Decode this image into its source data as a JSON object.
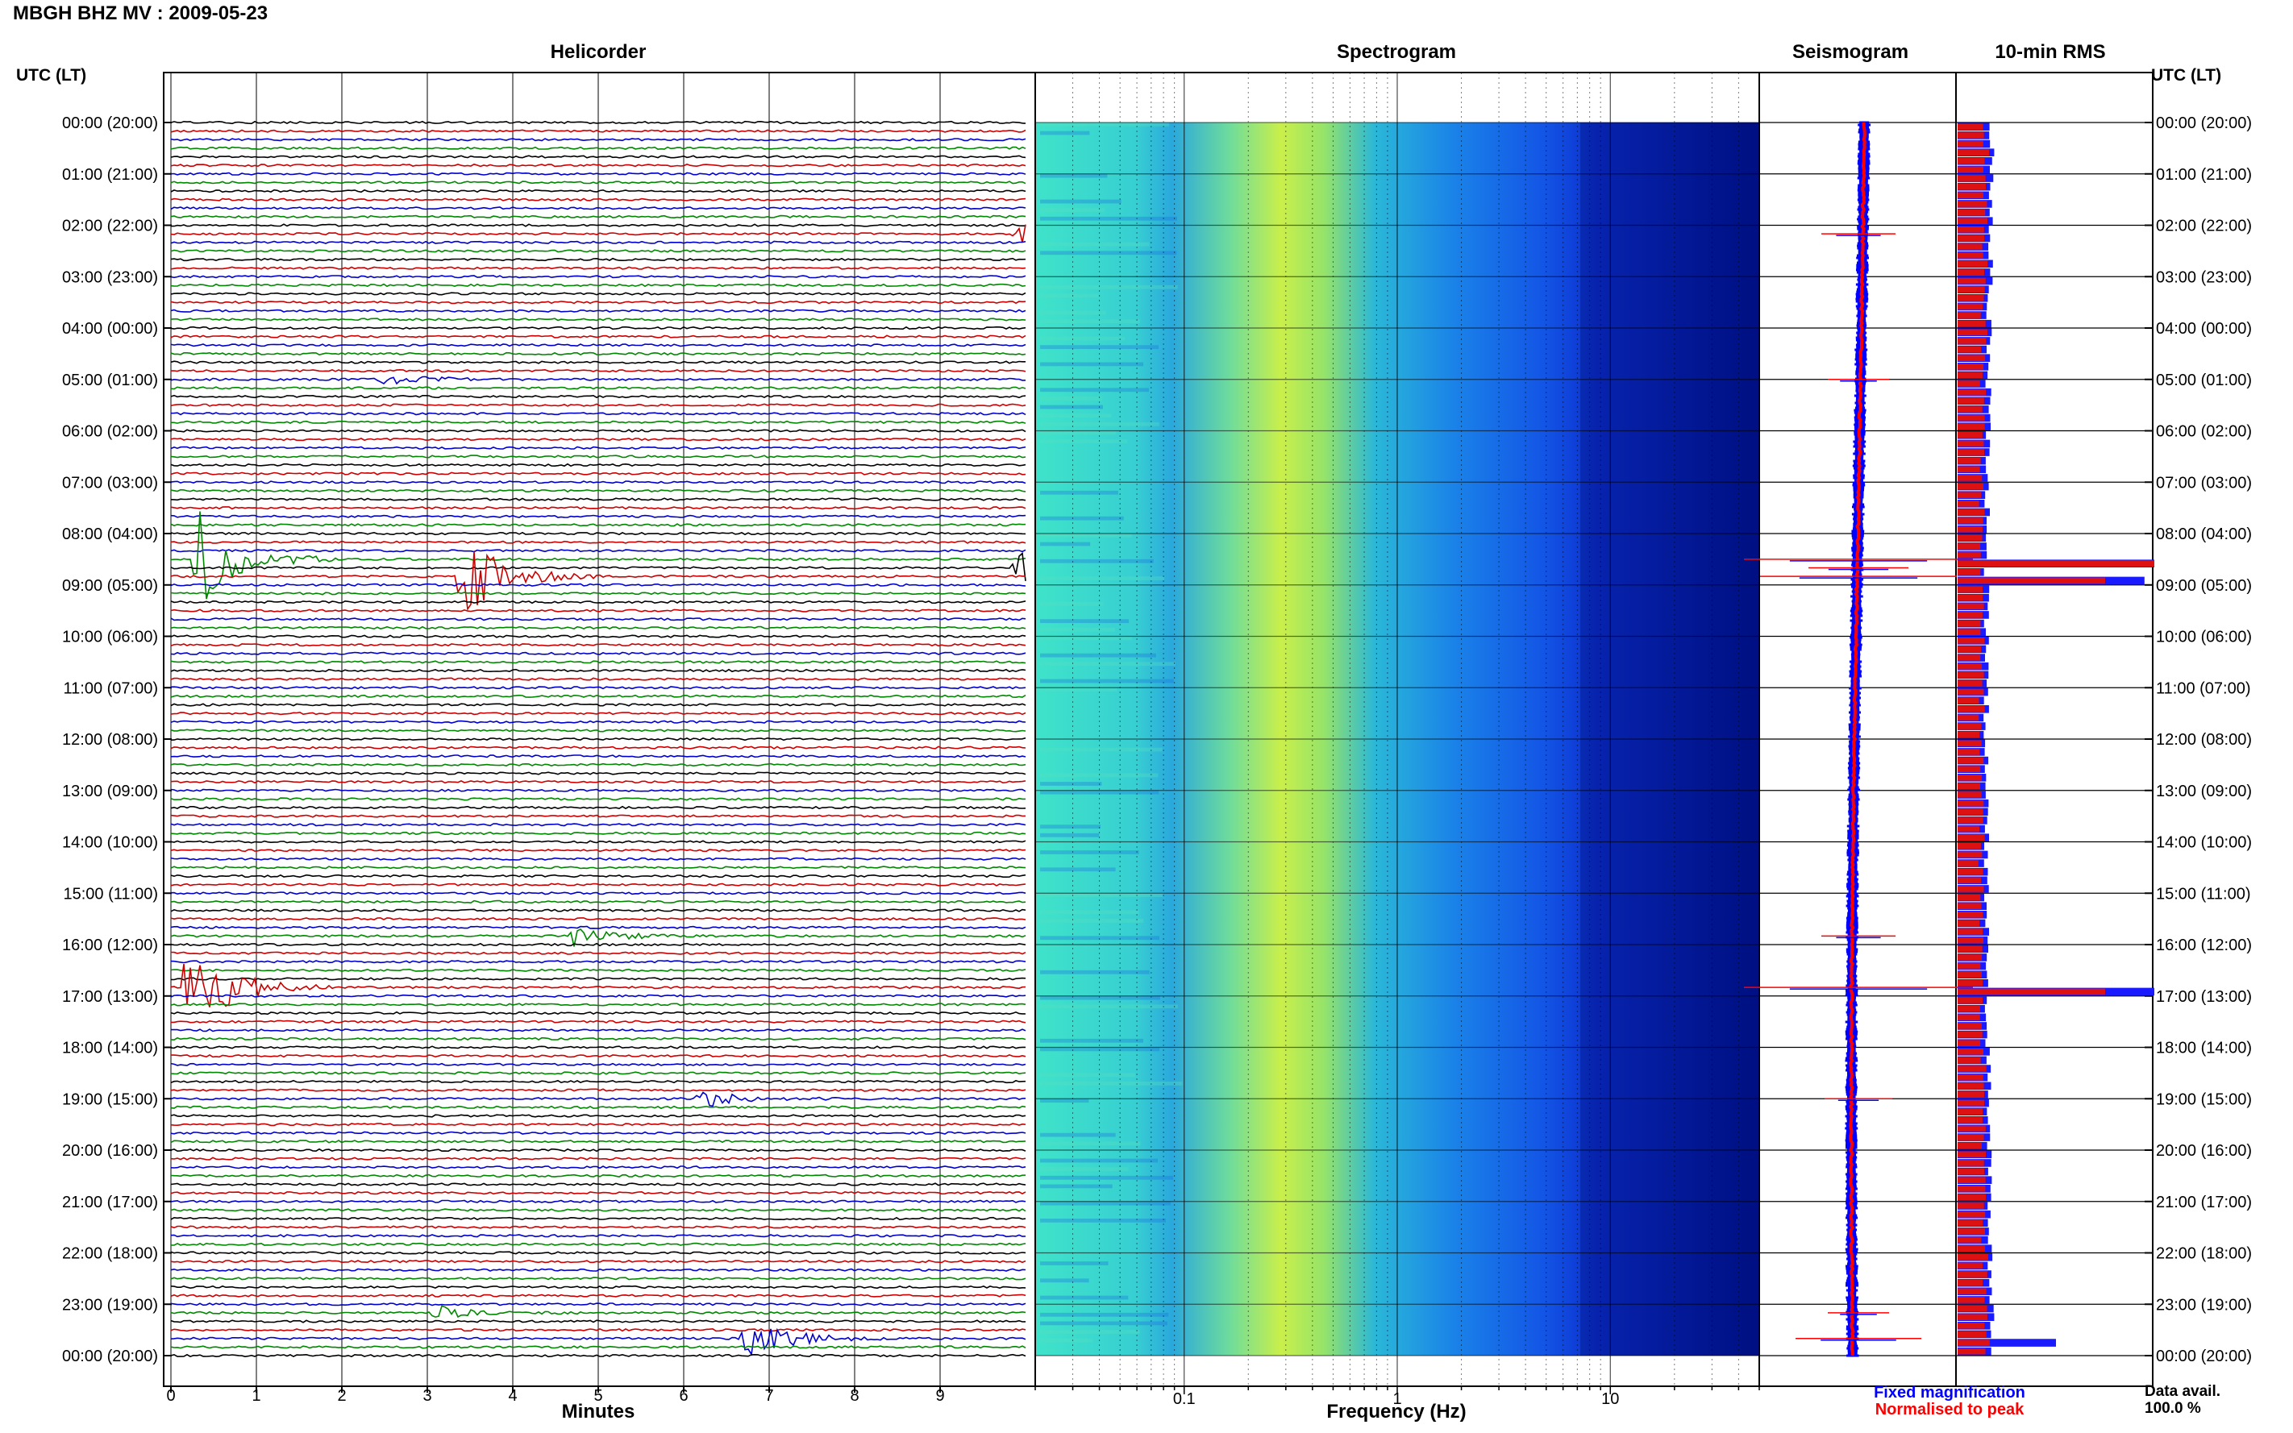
{
  "station_title": "MBGH BHZ MV : 2009-05-23",
  "panels": {
    "helicorder": "Helicorder",
    "spectrogram": "Spectrogram",
    "seismogram": "Seismogram",
    "rms": "10-min RMS"
  },
  "time_axis": {
    "left_label": "UTC (LT)",
    "right_label": "UTC (LT)",
    "hour_labels": [
      "00:00 (20:00)",
      "01:00 (21:00)",
      "02:00 (22:00)",
      "03:00 (23:00)",
      "04:00 (00:00)",
      "05:00 (01:00)",
      "06:00 (02:00)",
      "07:00 (03:00)",
      "08:00 (04:00)",
      "09:00 (05:00)",
      "10:00 (06:00)",
      "11:00 (07:00)",
      "12:00 (08:00)",
      "13:00 (09:00)",
      "14:00 (10:00)",
      "15:00 (11:00)",
      "16:00 (12:00)",
      "17:00 (13:00)",
      "18:00 (14:00)",
      "19:00 (15:00)",
      "20:00 (16:00)",
      "21:00 (17:00)",
      "22:00 (18:00)",
      "23:00 (19:00)",
      "00:00 (20:00)"
    ]
  },
  "helicorder_axis": {
    "xlabel": "Minutes",
    "ticks": [
      "0",
      "1",
      "2",
      "3",
      "4",
      "5",
      "6",
      "7",
      "8",
      "9"
    ]
  },
  "spectrogram_axis": {
    "xlabel": "Frequency (Hz)",
    "ticks": [
      "0.1",
      "1",
      "10"
    ]
  },
  "legend": {
    "fixed": "Fixed magnification",
    "normalised": "Normalised to peak",
    "fixed_color": "#0000ff",
    "normalised_color": "#ff0000"
  },
  "data_avail": {
    "label": "Data avail.",
    "value": "100.0 %"
  },
  "colors": {
    "trace_cycle": [
      "#000000",
      "#cc0000",
      "#0000cc",
      "#008800"
    ],
    "rms_fixed": "#1a1aff",
    "rms_normalised": "#dd1111"
  },
  "chart_data": {
    "type": "heatmap",
    "title": "MBGH BHZ MV : 2009-05-23",
    "helicorder": {
      "xlabel": "Minutes",
      "xlim": [
        0,
        10
      ],
      "rows_per_hour": 6,
      "hours": 24,
      "events": [
        {
          "utc": "02:10",
          "minute": 9.9,
          "amp": 0.6
        },
        {
          "utc": "05:00",
          "minute": 2.5,
          "amp": 0.4
        },
        {
          "utc": "08:30",
          "minute": 0.3,
          "amp": 3.0
        },
        {
          "utc": "08:40",
          "minute": 9.9,
          "amp": 1.0
        },
        {
          "utc": "08:50",
          "minute": 3.4,
          "amp": 2.5
        },
        {
          "utc": "15:50",
          "minute": 4.7,
          "amp": 0.6
        },
        {
          "utc": "16:50",
          "minute": 0.2,
          "amp": 3.0
        },
        {
          "utc": "19:00",
          "minute": 6.2,
          "amp": 0.5
        },
        {
          "utc": "23:10",
          "minute": 3.1,
          "amp": 0.4
        },
        {
          "utc": "23:40",
          "minute": 6.7,
          "amp": 1.4
        }
      ]
    },
    "spectrogram": {
      "xlabel": "Frequency (Hz)",
      "xscale": "log",
      "xlim": [
        0.02,
        50
      ]
    },
    "rms": {
      "series": [
        {
          "name": "Fixed magnification",
          "peaks": [
            {
              "utc": "08:30",
              "value": 1.0
            },
            {
              "utc": "08:50",
              "value": 0.95
            },
            {
              "utc": "16:50",
              "value": 1.0
            },
            {
              "utc": "23:40",
              "value": 0.5
            }
          ]
        },
        {
          "name": "Normalised to peak",
          "peaks": [
            {
              "utc": "08:30",
              "value": 1.0
            },
            {
              "utc": "08:50",
              "value": 0.75
            },
            {
              "utc": "16:50",
              "value": 0.75
            }
          ]
        }
      ]
    }
  }
}
